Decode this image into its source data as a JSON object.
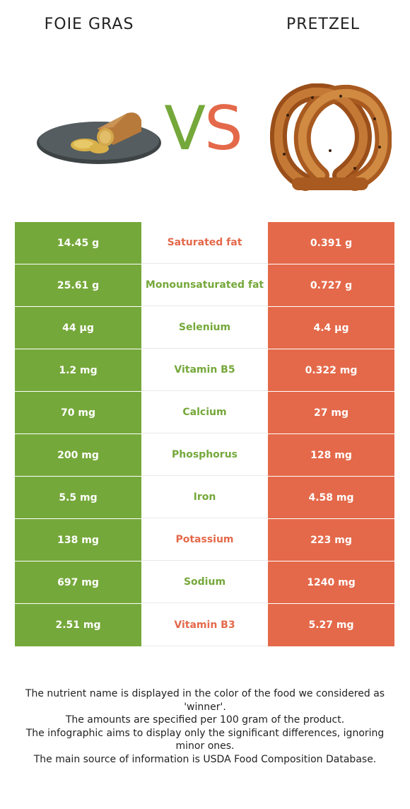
{
  "left_food": {
    "name": "FOIE GRAS",
    "color": "#75a83a"
  },
  "right_food": {
    "name": "PRETZEL",
    "color": "#e4694a"
  },
  "vs": {
    "v": "V",
    "s": "S"
  },
  "rows": [
    {
      "left": "14.45 g",
      "nutrient": "Saturated fat",
      "right": "0.391 g",
      "winner": "right"
    },
    {
      "left": "25.61 g",
      "nutrient": "Monounsaturated fat",
      "right": "0.727 g",
      "winner": "left"
    },
    {
      "left": "44 µg",
      "nutrient": "Selenium",
      "right": "4.4 µg",
      "winner": "left"
    },
    {
      "left": "1.2 mg",
      "nutrient": "Vitamin B5",
      "right": "0.322 mg",
      "winner": "left"
    },
    {
      "left": "70 mg",
      "nutrient": "Calcium",
      "right": "27 mg",
      "winner": "left"
    },
    {
      "left": "200 mg",
      "nutrient": "Phosphorus",
      "right": "128 mg",
      "winner": "left"
    },
    {
      "left": "5.5 mg",
      "nutrient": "Iron",
      "right": "4.58 mg",
      "winner": "left"
    },
    {
      "left": "138 mg",
      "nutrient": "Potassium",
      "right": "223 mg",
      "winner": "right"
    },
    {
      "left": "697 mg",
      "nutrient": "Sodium",
      "right": "1240 mg",
      "winner": "left"
    },
    {
      "left": "2.51 mg",
      "nutrient": "Vitamin B3",
      "right": "5.27 mg",
      "winner": "right"
    }
  ],
  "footer": {
    "line1": "The nutrient name is displayed in the color of the food we considered as 'winner'.",
    "line2": "The amounts are specified per 100 gram of the product.",
    "line3": "The infographic aims to display only the significant differences, ignoring minor ones.",
    "line4": "The main source of information is USDA Food Composition Database."
  }
}
